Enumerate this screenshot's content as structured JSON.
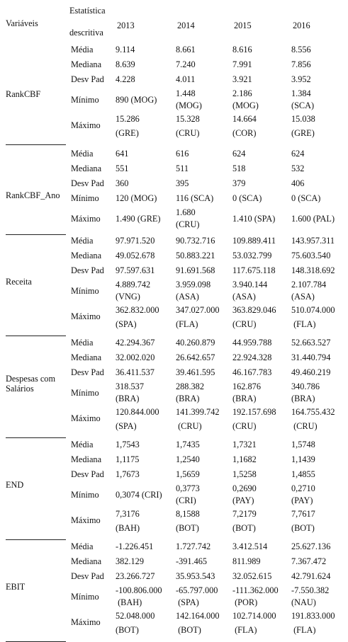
{
  "header": {
    "variables": "Variáveis",
    "stat_line1": "Estatística",
    "stat_line2": "descritiva",
    "years": [
      "2013",
      "2014",
      "2015",
      "2016"
    ]
  },
  "groups": [
    {
      "label": "RankCBF",
      "rows": [
        {
          "stat": "Média",
          "values": [
            "9.114",
            "8.661",
            "8.616",
            "8.556"
          ]
        },
        {
          "stat": "Mediana",
          "values": [
            "8.639",
            "7.240",
            "7.991",
            "7.856"
          ]
        },
        {
          "stat": "Desv Pad",
          "values": [
            "4.228",
            "4.011",
            "3.921",
            "3.952"
          ]
        },
        {
          "stat": "Mínimo",
          "values": [
            [
              "890 (MOG)"
            ],
            [
              "1.448",
              "(MOG)"
            ],
            [
              "2.186",
              "(MOG)"
            ],
            [
              "1.384",
              "(SCA)"
            ]
          ]
        },
        {
          "stat": "Máximo",
          "values": [
            [
              "15.286",
              "(GRE)"
            ],
            [
              "15.328",
              "(CRU)"
            ],
            [
              "14.664",
              "(COR)"
            ],
            [
              "15.038",
              "(GRE)"
            ]
          ]
        }
      ]
    },
    {
      "label": "RankCBF_Ano",
      "rows": [
        {
          "stat": "Média",
          "values": [
            "641",
            "616",
            "624",
            "624"
          ]
        },
        {
          "stat": "Mediana",
          "values": [
            "551",
            "511",
            "518",
            "532"
          ]
        },
        {
          "stat": "Desv Pad",
          "values": [
            "360",
            "395",
            "379",
            "406"
          ]
        },
        {
          "stat": "Mínimo",
          "values": [
            "120 (MOG)",
            "116 (SCA)",
            "0 (SCA)",
            "0 (SCA)"
          ]
        },
        {
          "stat": "Máximo",
          "values": [
            [
              "1.490 (GRE)"
            ],
            [
              "1.680",
              "(CRU)"
            ],
            [
              "1.410 (SPA)"
            ],
            [
              "1.600 (PAL)"
            ]
          ]
        }
      ]
    },
    {
      "label": "Receita",
      "rows": [
        {
          "stat": "Média",
          "values": [
            "97.971.520",
            "90.732.716",
            "109.889.411",
            "143.957.311"
          ]
        },
        {
          "stat": "Mediana",
          "values": [
            "49.052.678",
            "50.883.221",
            "53.032.799",
            "75.603.540"
          ]
        },
        {
          "stat": "Desv Pad",
          "values": [
            "97.597.631",
            "91.691.568",
            "117.675.118",
            "148.318.692"
          ]
        },
        {
          "stat": "Mínimo",
          "values": [
            [
              "4.889.742",
              "(VNG)"
            ],
            [
              "3.959.098",
              "(ASA)"
            ],
            [
              "3.940.144",
              "(ASA)"
            ],
            [
              "2.107.784",
              "(ASA)"
            ]
          ]
        },
        {
          "stat": "Máximo",
          "values": [
            [
              "362.832.000",
              "(SPA)"
            ],
            [
              "347.027.000",
              "(FLA)"
            ],
            [
              "363.829.046",
              "(CRU)"
            ],
            [
              "510.074.000",
              " (FLA)"
            ]
          ]
        }
      ]
    },
    {
      "label": "Despesas com Salários",
      "rows": [
        {
          "stat": "Média",
          "values": [
            "42.294.367",
            "40.260.879",
            "44.959.788",
            "52.663.527"
          ]
        },
        {
          "stat": "Mediana",
          "values": [
            "32.002.020",
            "26.642.657",
            "22.924.328",
            "31.440.794"
          ]
        },
        {
          "stat": "Desv Pad",
          "values": [
            "36.411.537",
            "39.461.595",
            "46.167.783",
            "49.460.219"
          ]
        },
        {
          "stat": "Mínimo",
          "values": [
            [
              "318.537",
              "(BRA)"
            ],
            [
              "288.382",
              "(BRA)"
            ],
            [
              "162.876",
              "(BRA)"
            ],
            [
              "340.786",
              "(BRA)"
            ]
          ]
        },
        {
          "stat": "Máximo",
          "values": [
            [
              "120.844.000",
              "(SPA)"
            ],
            [
              "141.399.742",
              " (CRU)"
            ],
            [
              "192.157.698",
              "(CRU)"
            ],
            [
              "164.755.432",
              " (CRU)"
            ]
          ]
        }
      ]
    },
    {
      "label": "END",
      "rows": [
        {
          "stat": "Média",
          "values": [
            "1,7543",
            "1,7435",
            "1,7321",
            "1,5748"
          ]
        },
        {
          "stat": "Mediana",
          "values": [
            "1,1175",
            "1,2540",
            "1,1682",
            "1,1439"
          ]
        },
        {
          "stat": "Desv Pad",
          "values": [
            "1,7673",
            "1,5659",
            "1,5258",
            "1,4855"
          ]
        },
        {
          "stat": "Mínimo",
          "values": [
            [
              "0,3074 (CRI)"
            ],
            [
              "0,3773",
              "(CRI)"
            ],
            [
              "0,2690",
              "(PAY)"
            ],
            [
              "0,2710",
              "(PAY)"
            ]
          ]
        },
        {
          "stat": "Máximo",
          "values": [
            [
              "7,3176",
              "(BAH)"
            ],
            [
              "8,1588",
              "(BOT)"
            ],
            [
              "7,2179",
              "(BOT)"
            ],
            [
              "7,7617",
              "(BOT)"
            ]
          ]
        }
      ]
    },
    {
      "label": "EBIT",
      "rows": [
        {
          "stat": "Média",
          "values": [
            "-1.226.451",
            "1.727.742",
            "3.412.514",
            "25.627.136"
          ]
        },
        {
          "stat": "Mediana",
          "values": [
            "382.129",
            "-391.465",
            "811.989",
            "7.367.472"
          ]
        },
        {
          "stat": "Desv Pad",
          "values": [
            "23.266.727",
            "35.953.543",
            "32.052.615",
            "42.791.624"
          ]
        },
        {
          "stat": "Mínimo",
          "values": [
            [
              "-100.806.000",
              " (BAH)"
            ],
            [
              "-65.797.000",
              " (SPA)"
            ],
            [
              "-111.362.000",
              " (POR)"
            ],
            [
              "-7.550.382",
              "(NAU)"
            ]
          ]
        },
        {
          "stat": "Máximo",
          "values": [
            [
              "52.048.000",
              "(BOT)"
            ],
            [
              "142.164.000",
              " (BOT)"
            ],
            [
              "102.714.000",
              " (FLA)"
            ],
            [
              "191.833.000",
              " (FLA)"
            ]
          ]
        }
      ]
    }
  ]
}
